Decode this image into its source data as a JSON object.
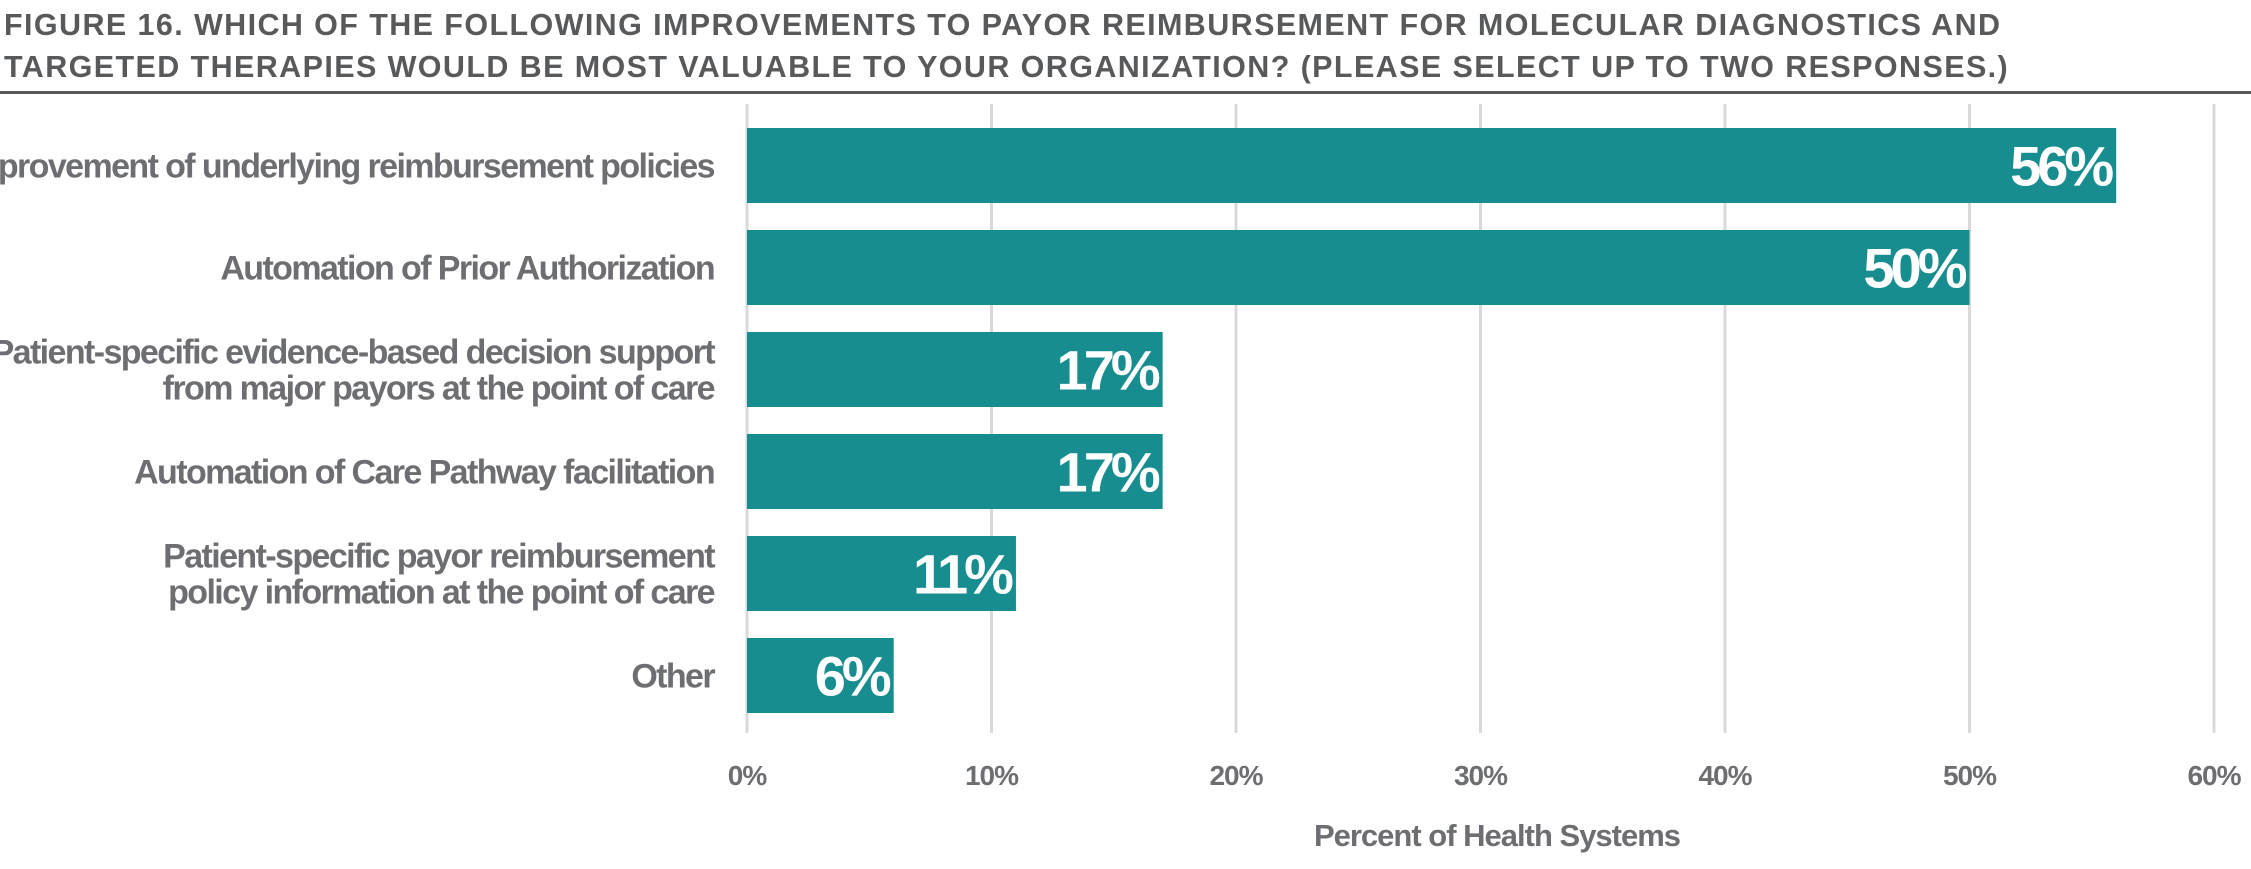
{
  "title_lines": [
    "FIGURE 16. WHICH OF THE FOLLOWING IMPROVEMENTS TO PAYOR REIMBURSEMENT FOR MOLECULAR DIAGNOSTICS AND",
    "TARGETED THERAPIES WOULD BE MOST VALUABLE TO YOUR ORGANIZATION? (PLEASE SELECT UP TO TWO RESPONSES.)"
  ],
  "colors": {
    "bar": "#178d8f",
    "grid": "#d9d9d9",
    "text": "#6d6e71",
    "title": "#58595b"
  },
  "chart_data": {
    "type": "bar",
    "orientation": "horizontal",
    "categories": [
      [
        "Improvement of underlying reimbursement policies"
      ],
      [
        "Automation of Prior Authorization"
      ],
      [
        "Patient-specific evidence-based decision support",
        "from major payors at the point of care"
      ],
      [
        "Automation of Care Pathway facilitation"
      ],
      [
        "Patient-specific payor reimbursement",
        "policy information at the point of care"
      ],
      [
        "Other"
      ]
    ],
    "values": [
      56,
      50,
      17,
      17,
      11,
      6
    ],
    "data_labels": [
      "56%",
      "50%",
      "17%",
      "17%",
      "11%",
      "6%"
    ],
    "xlim": [
      0,
      60
    ],
    "xticks": [
      0,
      10,
      20,
      30,
      40,
      50,
      60
    ],
    "xtick_labels": [
      "0%",
      "10%",
      "20%",
      "30%",
      "40%",
      "50%",
      "60%"
    ],
    "xlabel": "Percent of Health Systems",
    "ylabel": "",
    "grid": "vertical",
    "legend": "none"
  }
}
